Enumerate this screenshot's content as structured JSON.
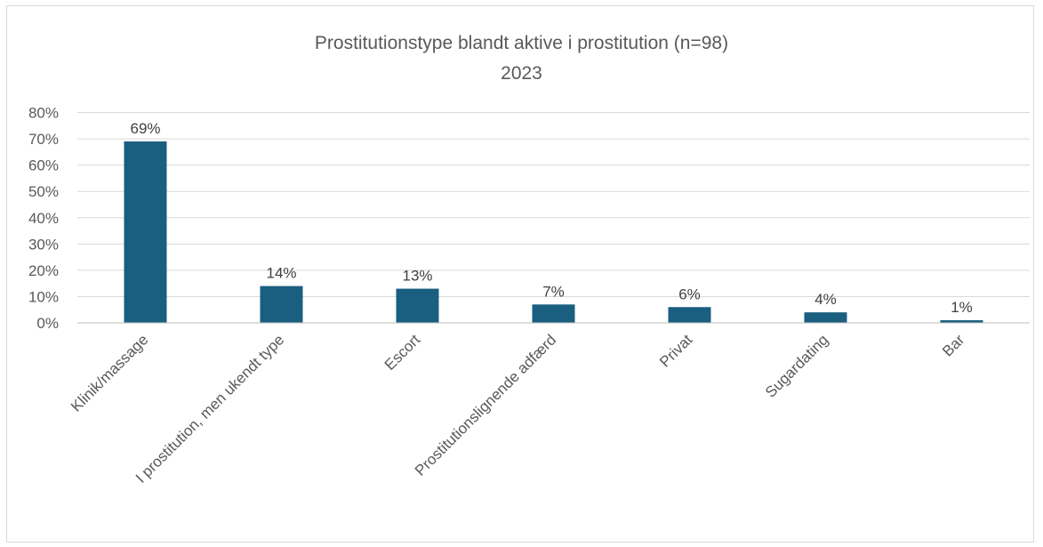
{
  "chart_data": {
    "type": "bar",
    "title": "Prostitutionstype blandt aktive i prostitution (n=98)",
    "subtitle": "2023",
    "categories": [
      "Klinik/massage",
      "I prostitution, men ukendt type",
      "Escort",
      "Prostitutionslignende adfærd",
      "Privat",
      "Sugardating",
      "Bar"
    ],
    "values": [
      69,
      14,
      13,
      7,
      6,
      4,
      1
    ],
    "data_labels": [
      "69%",
      "14%",
      "13%",
      "7%",
      "6%",
      "4%",
      "1%"
    ],
    "y_ticks": [
      "0%",
      "10%",
      "20%",
      "30%",
      "40%",
      "50%",
      "60%",
      "70%",
      "80%"
    ],
    "ylim": [
      0,
      80
    ],
    "xlabel": "",
    "ylabel": "",
    "grid": true,
    "legend": "none",
    "bar_color": "#1a5e80",
    "grid_color": "#d9d9d9",
    "axis_color": "#bfbfbf"
  }
}
